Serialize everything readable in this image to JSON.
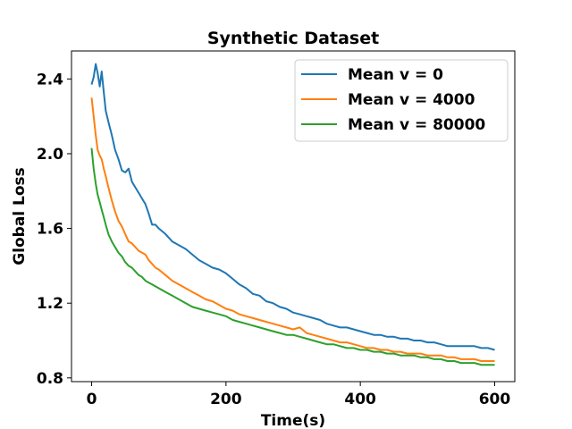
{
  "chart_data": {
    "type": "line",
    "title": "Synthetic Dataset",
    "xlabel": "Time(s)",
    "ylabel": "Global Loss",
    "xlim": [
      -30,
      630
    ],
    "ylim": [
      0.78,
      2.55
    ],
    "x_ticks": [
      0,
      200,
      400,
      600
    ],
    "y_ticks": [
      0.8,
      1.2,
      1.6,
      2.0,
      2.4
    ],
    "y_tick_labels": [
      "0.8",
      "1.2",
      "1.6",
      "2.0",
      "2.4"
    ],
    "grid": false,
    "legend_position": "top-right",
    "series": [
      {
        "name": "Mean v = 0",
        "color": "#1f77b4",
        "x": [
          0,
          3,
          6,
          9,
          12,
          15,
          18,
          21,
          25,
          30,
          35,
          40,
          45,
          50,
          55,
          60,
          65,
          70,
          75,
          80,
          85,
          90,
          95,
          100,
          110,
          120,
          130,
          140,
          150,
          160,
          170,
          180,
          190,
          200,
          210,
          220,
          230,
          240,
          250,
          260,
          270,
          280,
          290,
          300,
          310,
          320,
          330,
          340,
          350,
          360,
          370,
          380,
          390,
          400,
          410,
          420,
          430,
          440,
          450,
          460,
          470,
          480,
          490,
          500,
          510,
          520,
          530,
          540,
          550,
          560,
          570,
          580,
          590,
          600
        ],
        "y": [
          2.37,
          2.41,
          2.48,
          2.43,
          2.36,
          2.44,
          2.33,
          2.23,
          2.17,
          2.1,
          2.02,
          1.97,
          1.91,
          1.9,
          1.92,
          1.85,
          1.82,
          1.79,
          1.76,
          1.73,
          1.68,
          1.62,
          1.62,
          1.6,
          1.57,
          1.53,
          1.51,
          1.49,
          1.46,
          1.43,
          1.41,
          1.39,
          1.38,
          1.36,
          1.33,
          1.3,
          1.28,
          1.25,
          1.24,
          1.21,
          1.2,
          1.18,
          1.17,
          1.15,
          1.14,
          1.13,
          1.12,
          1.11,
          1.09,
          1.08,
          1.07,
          1.07,
          1.06,
          1.05,
          1.04,
          1.03,
          1.03,
          1.02,
          1.02,
          1.01,
          1.01,
          1.0,
          1.0,
          0.99,
          0.99,
          0.98,
          0.97,
          0.97,
          0.97,
          0.97,
          0.97,
          0.96,
          0.96,
          0.95
        ]
      },
      {
        "name": "Mean v = 4000",
        "color": "#ff7f0e",
        "x": [
          0,
          3,
          6,
          9,
          12,
          15,
          18,
          21,
          25,
          30,
          35,
          40,
          45,
          50,
          55,
          60,
          65,
          70,
          75,
          80,
          85,
          90,
          95,
          100,
          110,
          120,
          130,
          140,
          150,
          160,
          170,
          180,
          190,
          200,
          210,
          220,
          230,
          240,
          250,
          260,
          270,
          280,
          290,
          300,
          310,
          320,
          330,
          340,
          350,
          360,
          370,
          380,
          390,
          400,
          410,
          420,
          430,
          440,
          450,
          460,
          470,
          480,
          490,
          500,
          510,
          520,
          530,
          540,
          550,
          560,
          570,
          580,
          590,
          600
        ],
        "y": [
          2.3,
          2.2,
          2.1,
          2.02,
          1.99,
          1.97,
          1.92,
          1.88,
          1.82,
          1.75,
          1.69,
          1.64,
          1.61,
          1.57,
          1.53,
          1.52,
          1.5,
          1.48,
          1.47,
          1.46,
          1.43,
          1.41,
          1.39,
          1.38,
          1.35,
          1.32,
          1.3,
          1.28,
          1.26,
          1.24,
          1.22,
          1.21,
          1.19,
          1.17,
          1.16,
          1.14,
          1.13,
          1.12,
          1.11,
          1.1,
          1.09,
          1.08,
          1.07,
          1.06,
          1.07,
          1.04,
          1.03,
          1.02,
          1.01,
          1.0,
          0.99,
          0.99,
          0.98,
          0.97,
          0.96,
          0.96,
          0.95,
          0.95,
          0.94,
          0.94,
          0.93,
          0.93,
          0.93,
          0.92,
          0.92,
          0.92,
          0.91,
          0.91,
          0.9,
          0.9,
          0.9,
          0.89,
          0.89,
          0.89
        ]
      },
      {
        "name": "Mean v = 80000",
        "color": "#2ca02c",
        "x": [
          0,
          3,
          6,
          9,
          12,
          15,
          18,
          21,
          25,
          30,
          35,
          40,
          45,
          50,
          55,
          60,
          65,
          70,
          75,
          80,
          85,
          90,
          95,
          100,
          110,
          120,
          130,
          140,
          150,
          160,
          170,
          180,
          190,
          200,
          210,
          220,
          230,
          240,
          250,
          260,
          270,
          280,
          290,
          300,
          310,
          320,
          330,
          340,
          350,
          360,
          370,
          380,
          390,
          400,
          410,
          420,
          430,
          440,
          450,
          460,
          470,
          480,
          490,
          500,
          510,
          520,
          530,
          540,
          550,
          560,
          570,
          580,
          590,
          600
        ],
        "y": [
          2.03,
          1.92,
          1.84,
          1.78,
          1.74,
          1.7,
          1.66,
          1.62,
          1.57,
          1.53,
          1.5,
          1.47,
          1.45,
          1.42,
          1.4,
          1.39,
          1.37,
          1.35,
          1.34,
          1.32,
          1.31,
          1.3,
          1.29,
          1.28,
          1.26,
          1.24,
          1.22,
          1.2,
          1.18,
          1.17,
          1.16,
          1.15,
          1.14,
          1.13,
          1.11,
          1.1,
          1.09,
          1.08,
          1.07,
          1.06,
          1.05,
          1.04,
          1.03,
          1.03,
          1.02,
          1.01,
          1.0,
          0.99,
          0.98,
          0.98,
          0.97,
          0.96,
          0.96,
          0.95,
          0.95,
          0.94,
          0.94,
          0.93,
          0.93,
          0.92,
          0.92,
          0.92,
          0.91,
          0.91,
          0.9,
          0.9,
          0.89,
          0.89,
          0.88,
          0.88,
          0.88,
          0.87,
          0.87,
          0.87
        ]
      }
    ]
  }
}
